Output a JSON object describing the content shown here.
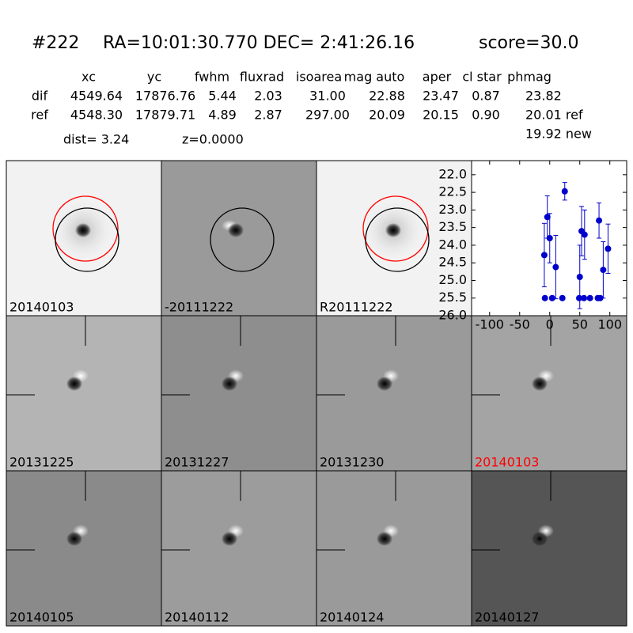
{
  "header": {
    "id": "#222",
    "coords": "RA=10:01:30.770 DEC= 2:41:26.16",
    "score": "score=30.0"
  },
  "table": {
    "columns": [
      "xc",
      "yc",
      "fwhm",
      "fluxrad",
      "isoarea",
      "mag auto",
      "aper",
      "cl star",
      "phmag"
    ],
    "rows": [
      [
        "dif",
        "4549.64",
        "17876.76",
        "5.44",
        "2.03",
        "31.00",
        "22.88",
        "23.47",
        "0.87",
        "23.82"
      ],
      [
        "ref",
        "4548.30",
        "17879.71",
        "4.89",
        "2.87",
        "297.00",
        "20.09",
        "20.15",
        "0.90",
        "20.01 ref"
      ]
    ],
    "extra": "19.92 new"
  },
  "summary": {
    "dist": "dist=  3.24",
    "z": "z=0.0000"
  },
  "stamps": [
    {
      "label": "20140103"
    },
    {
      "label": "-20111222"
    },
    {
      "label": "R20111222"
    },
    {
      "label": "20131225"
    },
    {
      "label": "20131227"
    },
    {
      "label": "20131230"
    },
    {
      "label": "20140103",
      "color": "#ff0000"
    },
    {
      "label": "20140105"
    },
    {
      "label": "20140112"
    },
    {
      "label": "20140124"
    },
    {
      "label": "20140127"
    }
  ],
  "chart_data": {
    "type": "scatter",
    "color": "#0000cc",
    "x": [
      -9,
      -4,
      0,
      10,
      25,
      -8,
      4,
      21,
      50,
      53,
      58,
      49,
      57,
      67,
      80,
      84,
      82,
      89,
      97
    ],
    "values": [
      24.28,
      23.2,
      23.8,
      24.62,
      22.47,
      25.5,
      25.5,
      25.5,
      24.9,
      23.6,
      23.7,
      25.5,
      25.5,
      25.5,
      25.5,
      25.5,
      23.3,
      24.7,
      24.1
    ],
    "errors": [
      0.9,
      0.6,
      0.7,
      0.9,
      0.25,
      0.05,
      0.05,
      0.05,
      0.9,
      0.7,
      0.7,
      0.05,
      0.05,
      0.05,
      0.05,
      0.05,
      0.5,
      0.8,
      0.7
    ],
    "xlim": [
      -130,
      128
    ],
    "ylim": [
      26.0,
      21.6
    ],
    "xticks": [
      -100,
      -50,
      0,
      50,
      100
    ],
    "yticks": [
      {
        "value": 22.0,
        "label": "22.0"
      },
      {
        "value": 22.5,
        "label": "22.5"
      },
      {
        "value": 23.0,
        "label": "23.0"
      },
      {
        "value": 23.5,
        "label": "23.5"
      },
      {
        "value": 24.0,
        "label": "24.0"
      },
      {
        "value": 24.5,
        "label": "24.5"
      },
      {
        "value": 25.0,
        "label": "25.0"
      },
      {
        "value": 25.5,
        "label": "25.5"
      },
      {
        "value": 26.0,
        "label": "26.0"
      }
    ]
  }
}
